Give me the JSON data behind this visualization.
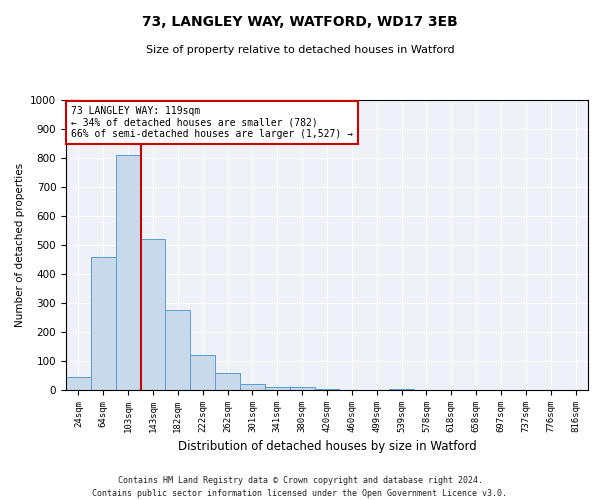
{
  "title1": "73, LANGLEY WAY, WATFORD, WD17 3EB",
  "title2": "Size of property relative to detached houses in Watford",
  "xlabel": "Distribution of detached houses by size in Watford",
  "ylabel": "Number of detached properties",
  "bar_labels": [
    "24sqm",
    "64sqm",
    "103sqm",
    "143sqm",
    "182sqm",
    "222sqm",
    "262sqm",
    "301sqm",
    "341sqm",
    "380sqm",
    "420sqm",
    "460sqm",
    "499sqm",
    "539sqm",
    "578sqm",
    "618sqm",
    "658sqm",
    "697sqm",
    "737sqm",
    "776sqm",
    "816sqm"
  ],
  "bar_values": [
    45,
    460,
    810,
    520,
    275,
    120,
    60,
    20,
    10,
    10,
    5,
    0,
    0,
    5,
    0,
    0,
    0,
    0,
    0,
    0,
    0
  ],
  "bar_color": "#c9d9ec",
  "bar_edgecolor": "#5b9bd5",
  "vline_color": "#cc0000",
  "vline_x": 2.5,
  "annotation_line1": "73 LANGLEY WAY: 119sqm",
  "annotation_line2": "← 34% of detached houses are smaller (782)",
  "annotation_line3": "66% of semi-detached houses are larger (1,527) →",
  "annotation_box_facecolor": "#ffffff",
  "annotation_box_edgecolor": "#cc0000",
  "ylim": [
    0,
    1000
  ],
  "yticks": [
    0,
    100,
    200,
    300,
    400,
    500,
    600,
    700,
    800,
    900,
    1000
  ],
  "background_color": "#eef2f8",
  "grid_color": "#ffffff",
  "footer1": "Contains HM Land Registry data © Crown copyright and database right 2024.",
  "footer2": "Contains public sector information licensed under the Open Government Licence v3.0."
}
